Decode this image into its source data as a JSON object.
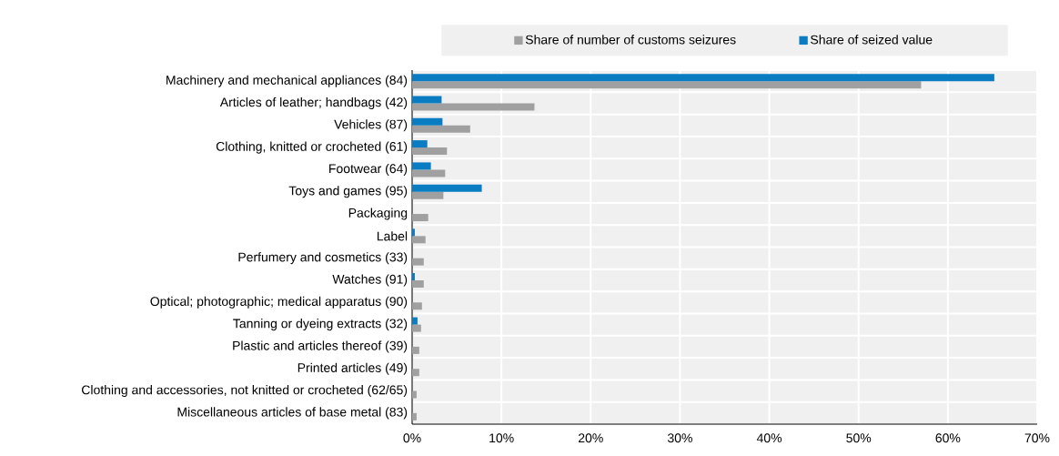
{
  "chart_data": {
    "type": "bar",
    "orientation": "horizontal",
    "categories": [
      "Machinery and mechanical appliances (84)",
      "Articles of leather; handbags (42)",
      "Vehicles (87)",
      "Clothing, knitted or crocheted (61)",
      "Footwear (64)",
      "Toys and games (95)",
      "Packaging",
      "Label",
      "Perfumery and cosmetics (33)",
      "Watches (91)",
      "Optical; photographic; medical apparatus (90)",
      "Tanning or dyeing extracts (32)",
      "Plastic and articles thereof (39)",
      "Printed articles (49)",
      "Clothing and accessories, not knitted or crocheted (62/65)",
      "Miscellaneous articles of base metal (83)"
    ],
    "series": [
      {
        "name": "Share of number of customs seizures",
        "color": "#a0a0a0",
        "values": [
          57,
          13.7,
          6.5,
          3.9,
          3.7,
          3.5,
          1.8,
          1.5,
          1.3,
          1.3,
          1.1,
          1.0,
          0.8,
          0.8,
          0.5,
          0.5
        ]
      },
      {
        "name": "Share of seized value",
        "color": "#0a7cc1",
        "values": [
          65.2,
          3.3,
          3.4,
          1.7,
          2.1,
          7.8,
          null,
          0.3,
          null,
          0.3,
          null,
          0.6,
          null,
          null,
          null,
          null
        ]
      }
    ],
    "xlim": [
      0,
      70
    ],
    "xticks": [
      {
        "value": 0,
        "label": "0%"
      },
      {
        "value": 10,
        "label": "10%"
      },
      {
        "value": 20,
        "label": "20%"
      },
      {
        "value": 30,
        "label": "30%"
      },
      {
        "value": 40,
        "label": "40%"
      },
      {
        "value": 50,
        "label": "50%"
      },
      {
        "value": 60,
        "label": "60%"
      },
      {
        "value": 70,
        "label": "70%"
      }
    ],
    "grid": true,
    "legend": "top"
  }
}
